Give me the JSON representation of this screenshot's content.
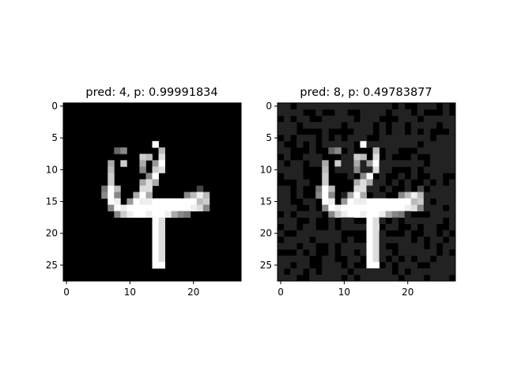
{
  "chart_data": [
    {
      "type": "heatmap",
      "title": "pred: 4, p: 0.99991834",
      "colormap": "gray",
      "xlim": [
        -0.5,
        27.5
      ],
      "ylim": [
        27.5,
        -0.5
      ],
      "xticks": [
        0,
        10,
        20
      ],
      "yticks": [
        0,
        5,
        10,
        15,
        20,
        25
      ],
      "grid": false,
      "rows": [
        "............................",
        "............................",
        "............................",
        "............................",
        "............................",
        "............................",
        ".............GF.............",
        "........68..GWWB............",
        "........WW..CBWD............",
        ".......AWC..A.9F............",
        ".......BW...8.CD............",
        ".......CW....8F.............",
        ".......CW...ADA.............",
        "......7FB...DD.......4......",
        "......8F8..AFA.....8BEB.....",
        ".......FE.9FEEFFFFFFFBC.....",
        ".......8FEFFFFFFFFFFED8.....",
        "........8CEFFEFFEA87........",
        "..............FD............",
        "..............FD............",
        "..............FD............",
        "..............FD............",
        "..............FD............",
        "..............FD............",
        "..............FD............",
        "..............FF............",
        "............................",
        "............................"
      ]
    },
    {
      "type": "heatmap",
      "title": "pred: 8, p: 0.49783877",
      "colormap": "gray",
      "xlim": [
        -0.5,
        27.5
      ],
      "ylim": [
        27.5,
        -0.5
      ],
      "xticks": [
        0,
        10,
        20
      ],
      "yticks": [
        0,
        5,
        10,
        15,
        20,
        25
      ],
      "grid": false,
      "rows": [
        "22.222222222222222.2..222.2.",
        "2222..2..22..2222.222.2...2.",
        ".2.22..22222.222...222.22222",
        "222.222222.2222.2.22.2222.22",
        "222....2....222.2.22.2.2...2",
        ".2.222.2.2.222..22222222.222",
        "2..2.2.22222GF22222222.22222",
        "22...2..68.2GWWB.22...222222",
        ".2..222.WW22CBWD.2...2..2222",
        "2.22.22AWC22A29F2222222.2222",
        "2222...BW222822D22...2.22222",
        ".222...CW..2.8F.2..2.2..22..",
        "...22..CW...ADA22.2.2..2.2.2",
        "22.2..7FB...DD22.2..2.4.2222",
        "22.2..8F8.2AFA.22..8BEB22222",
        "22..22.FE.9FEEFFFFFFFBC2.222",
        "222..2.8FEFFFFFFFFFFED8222.2",
        ".2.2222.8CEFFEFFEA872...2222",
        "222..2..2.22..FD2.2.222222.2",
        ".22.22..2.2222FD.22..2.22..2",
        "2..2222222....FD2...2..22.2.",
        ".2222.2222.2..FD22222.2.22.2",
        "222.22..2.2222FD2..2222.2.22",
        "...2.2..2.22.2FD22.222222.2.",
        "22222..22..22.FD2.2.2.22.222",
        "22.22..222.2..FF.2.222..2222",
        "2.22.2.2222.222222.2.2222222",
        "222..22222.2.222222.222.222."
      ]
    }
  ]
}
